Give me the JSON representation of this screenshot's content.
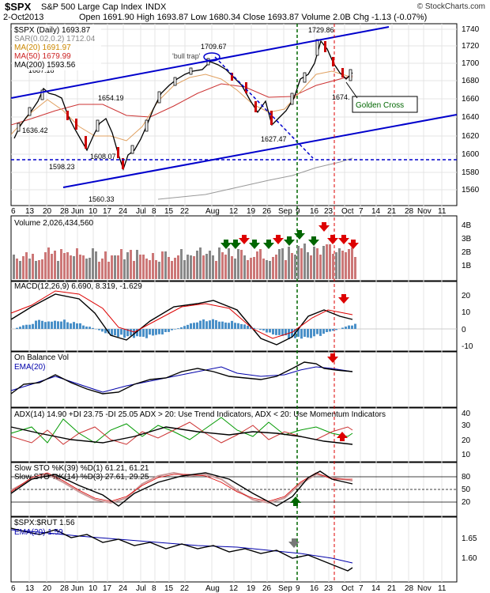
{
  "header": {
    "symbol": "$SPX",
    "name": "S&P 500 Large Cap Index",
    "exchange": "INDX",
    "date": "2-Oct2013",
    "ohlc": "Open 1691.90  High 1693.87  Low 1680.34  Close 1693.87  Volume 2.0B  Chg -1.13 (-0.07%)",
    "brand": "© StockCharts.com"
  },
  "legend_price": {
    "title": "$SPX (Daily) 1693.87",
    "sar": "SAR(0.02,0.2) 1712.04",
    "ma20": "MA(20) 1691.97",
    "ma50": "MA(50) 1679.99",
    "ma200": "MA(200) 1593.56"
  },
  "annotations": {
    "bull_trap": "'bull trap'",
    "golden_cross": "Golden Cross",
    "labels": [
      "1687.18",
      "1709.67",
      "1729.86",
      "1654.19",
      "1636.42",
      "1608.07",
      "1598.23",
      "1560.33",
      "1627.47",
      "1674."
    ]
  },
  "panels": {
    "volume": "Volume 2,026,434,560",
    "macd": "MACD(12,26,9) 6.690, 8.319, -1.629",
    "obv": "On Balance Vol",
    "obv_ema": "EMA(20)",
    "adx": "ADX(14) 14.90 +DI 23.75 -DI 25.05  ADX > 20: Use Trend Indicators, ADX < 20: Use Momentum Indicators",
    "sto1": "Slow STO %K(39) %D(1) 61.21, 61.21",
    "sto2": "Slow STO %K(14) %D(3) 27.61, 29.25",
    "ratio": "$SPX:$RUT 1.56",
    "ratio_ema": "EMA(20) 1.59"
  },
  "axis": {
    "x_labels": [
      "6",
      "13",
      "20",
      "28",
      "Jun",
      "10",
      "17",
      "24",
      "Jul",
      "8",
      "15",
      "22",
      "Aug",
      "12",
      "19",
      "26",
      "Sep",
      "9",
      "16",
      "23",
      "Oct",
      "7",
      "14",
      "21",
      "28",
      "Nov",
      "11"
    ],
    "price_ticks": [
      "1740",
      "1720",
      "1700",
      "1680",
      "1660",
      "1640",
      "1620",
      "1600",
      "1580",
      "1560"
    ],
    "volume_ticks": [
      "4B",
      "3B",
      "2B",
      "1B"
    ],
    "macd_ticks": [
      "20",
      "10",
      "0",
      "-10"
    ],
    "adx_ticks": [
      "40",
      "30",
      "20",
      "10"
    ],
    "sto_ticks": [
      "80",
      "50",
      "20"
    ],
    "ratio_ticks": [
      "1.65",
      "1.60"
    ]
  },
  "colors": {
    "trendline": "#0000cc",
    "up_candle": "#000000",
    "down_candle": "#cc0000",
    "ma20": "#e0a060",
    "ma50": "#cc2222",
    "ma200": "#999999",
    "vol_up": "#888888",
    "vol_down": "#cc7777",
    "macd_hist": "#4a90c8",
    "green_marker": "#006600",
    "red_marker": "#dd0000"
  },
  "chart_data": {
    "type": "line",
    "title": "$SPX (Daily) 1693.87",
    "ylim": [
      1550,
      1745
    ],
    "price_points": [
      [
        "May-06",
        1617
      ],
      [
        "May-13",
        1636
      ],
      [
        "May-20",
        1650
      ],
      [
        "May-22",
        1687
      ],
      [
        "May-28",
        1654
      ],
      [
        "Jun-03",
        1636
      ],
      [
        "Jun-06",
        1608
      ],
      [
        "Jun-11",
        1626
      ],
      [
        "Jun-18",
        1654
      ],
      [
        "Jun-24",
        1573
      ],
      [
        "Jun-27",
        1598
      ],
      [
        "Jul-08",
        1640
      ],
      [
        "Jul-15",
        1680
      ],
      [
        "Jul-22",
        1695
      ],
      [
        "Jul-24",
        1709
      ],
      [
        "Aug-02",
        1709
      ],
      [
        "Aug-12",
        1690
      ],
      [
        "Aug-19",
        1655
      ],
      [
        "Aug-27",
        1630
      ],
      [
        "Sep-03",
        1640
      ],
      [
        "Sep-09",
        1672
      ],
      [
        "Sep-16",
        1698
      ],
      [
        "Sep-18",
        1729
      ],
      [
        "Sep-23",
        1701
      ],
      [
        "Sep-27",
        1691
      ],
      [
        "Oct-01",
        1695
      ],
      [
        "Oct-02",
        1693
      ]
    ],
    "volume_last": 2026434560,
    "macd": {
      "macd": 6.69,
      "signal": 8.319,
      "hist": -1.629
    },
    "adx": {
      "adx": 14.9,
      "plus_di": 23.75,
      "minus_di": 25.05
    },
    "slow_sto_39": {
      "k": 61.21,
      "d": 61.21
    },
    "slow_sto_14": {
      "k": 27.61,
      "d": 29.25
    },
    "ratio": {
      "value": 1.56,
      "ema20": 1.59
    }
  }
}
